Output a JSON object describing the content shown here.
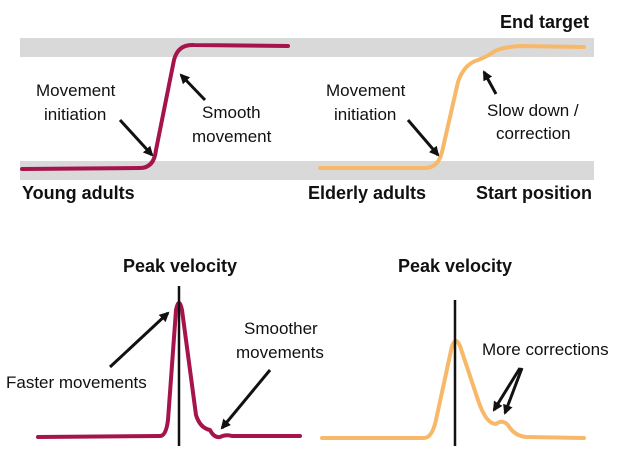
{
  "top": {
    "end_target_label": "End target",
    "start_position_label": "Start position",
    "young": {
      "group_label": "Young adults",
      "initiation_line1": "Movement",
      "initiation_line2": "initiation",
      "smooth_line1": "Smooth",
      "smooth_line2": "movement"
    },
    "elderly": {
      "group_label": "Elderly adults",
      "initiation_line1": "Movement",
      "initiation_line2": "initiation",
      "slow_line1": "Slow down /",
      "slow_line2": "correction"
    }
  },
  "bottom": {
    "young": {
      "peak_label": "Peak velocity",
      "faster_label": "Faster movements",
      "smoother_line1": "Smoother",
      "smoother_line2": "movements"
    },
    "elderly": {
      "peak_label": "Peak velocity",
      "corrections_label": "More corrections"
    }
  },
  "colors": {
    "young_curve": "#a5144a",
    "elderly_curve": "#f7b86a",
    "band": "#d9d9d9",
    "arrow": "#111111"
  }
}
